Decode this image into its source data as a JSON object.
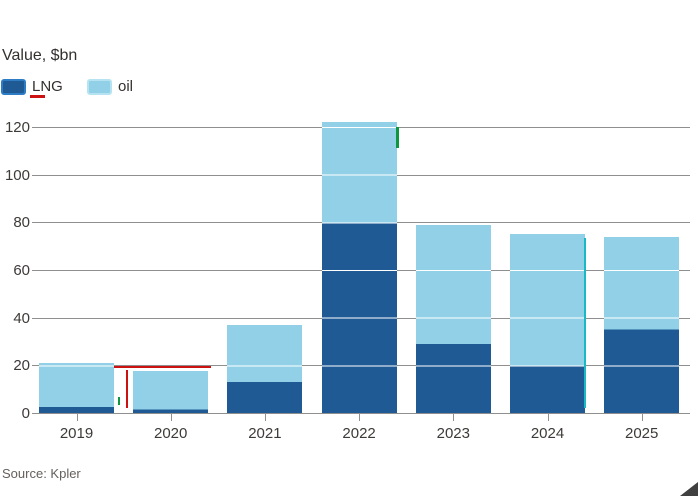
{
  "title": "Value, $bn",
  "source": "Source: Kpler",
  "legend": {
    "items": [
      {
        "label": "LNG",
        "swatch_color": "#1f5a94",
        "swatch_border": "#2d7cc4"
      },
      {
        "label": "oil",
        "swatch_color": "#91d0e7",
        "swatch_border": "#b5e3f2"
      }
    ]
  },
  "chart_data": {
    "type": "bar",
    "stacked": true,
    "title": "Value, $bn",
    "xlabel": "",
    "ylabel": "Value, $bn",
    "categories": [
      "2019",
      "2020",
      "2021",
      "2022",
      "2023",
      "2024",
      "2025"
    ],
    "series": [
      {
        "name": "LNG",
        "color": "#1f5a94",
        "values": [
          2.5,
          1.5,
          13,
          80,
          29,
          20,
          35
        ]
      },
      {
        "name": "oil",
        "color": "#91d0e7",
        "values": [
          18.5,
          16,
          24,
          42,
          50,
          55,
          39
        ]
      }
    ],
    "totals": [
      21,
      17.5,
      37,
      122,
      79,
      75,
      74
    ],
    "yticks": [
      0,
      20,
      40,
      60,
      80,
      100,
      120
    ],
    "ylim": [
      0,
      130
    ],
    "grid": true,
    "grid_over_bars_color": "#ffffff",
    "legend_position": "top-left",
    "source": "Source: Kpler"
  },
  "colors": {
    "background": "#ffffff",
    "gridline": "#8f8f8f",
    "tick": "#8f8f8f",
    "axis_text": "#3d3a37",
    "title_text": "#33302e",
    "source_text": "#66605c",
    "corner_triangle": "#404040",
    "artifact_red": "#cc1111",
    "artifact_green": "#0f9640",
    "artifact_cyan": "#1ab7c4"
  }
}
